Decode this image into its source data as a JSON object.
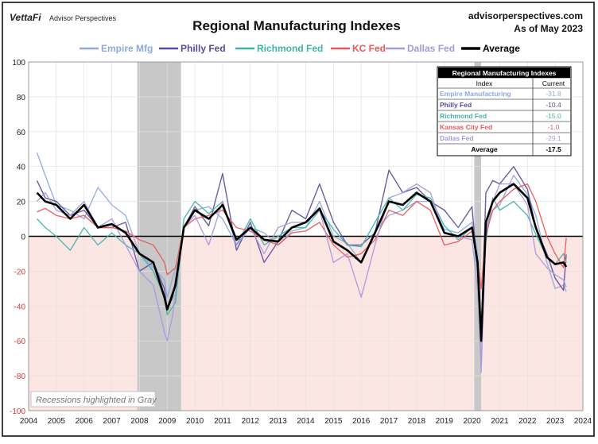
{
  "header": {
    "brand": "VettaFi",
    "brand_sub": "Advisor Perspectives",
    "site": "advisorperspectives.com",
    "as_of": "As of May 2023"
  },
  "chart_data": {
    "type": "line",
    "title": "Regional Manufacturing Indexes",
    "xlabel": "",
    "ylabel": "",
    "xlim": [
      2004,
      2024
    ],
    "ylim": [
      -100,
      100
    ],
    "x_ticks": [
      "2004",
      "2005",
      "2006",
      "2007",
      "2008",
      "2009",
      "2010",
      "2011",
      "2012",
      "2013",
      "2014",
      "2015",
      "2016",
      "2017",
      "2018",
      "2019",
      "2020",
      "2021",
      "2022",
      "2023",
      "2024"
    ],
    "y_ticks": [
      100,
      80,
      60,
      40,
      20,
      0,
      -20,
      -40,
      -60,
      -80,
      -100
    ],
    "recessions": [
      [
        2007.92,
        2009.5
      ],
      [
        2020.08,
        2020.33
      ]
    ],
    "annotation": "Recessions highlighted in Gray",
    "series": [
      {
        "name": "Empire Mfg",
        "color": "#8ea9db",
        "width": 1.4,
        "x": [
          2004.3,
          2004.6,
          2005.0,
          2005.5,
          2006.0,
          2006.5,
          2007.0,
          2007.5,
          2008.0,
          2008.5,
          2008.9,
          2009.0,
          2009.3,
          2009.6,
          2010.0,
          2010.5,
          2011.0,
          2011.5,
          2012.0,
          2012.5,
          2013.0,
          2013.5,
          2014.0,
          2014.5,
          2015.0,
          2015.5,
          2016.0,
          2016.5,
          2017.0,
          2017.5,
          2018.0,
          2018.5,
          2019.0,
          2019.5,
          2020.0,
          2020.2,
          2020.33,
          2020.5,
          2020.75,
          2021.0,
          2021.5,
          2022.0,
          2022.3,
          2022.7,
          2023.0,
          2023.3,
          2023.4
        ],
        "y": [
          48,
          35,
          18,
          15,
          10,
          28,
          18,
          12,
          -10,
          -18,
          -25,
          -35,
          -18,
          5,
          15,
          17,
          10,
          -5,
          5,
          2,
          -5,
          3,
          5,
          20,
          0,
          -4,
          -15,
          3,
          12,
          15,
          20,
          20,
          4,
          2,
          8,
          -10,
          -78,
          5,
          15,
          18,
          35,
          24,
          12,
          -15,
          -30,
          -28,
          -31.8
        ]
      },
      {
        "name": "Philly Fed",
        "color": "#5b4a9c",
        "width": 1.4,
        "x": [
          2004.3,
          2004.6,
          2005.0,
          2005.5,
          2006.0,
          2006.5,
          2007.0,
          2007.5,
          2008.0,
          2008.5,
          2008.9,
          2009.0,
          2009.2,
          2009.6,
          2010.0,
          2010.5,
          2011.0,
          2011.5,
          2012.0,
          2012.5,
          2013.0,
          2013.5,
          2014.0,
          2014.5,
          2015.0,
          2015.5,
          2016.0,
          2016.5,
          2017.0,
          2017.5,
          2018.0,
          2018.5,
          2019.0,
          2019.5,
          2020.0,
          2020.2,
          2020.33,
          2020.5,
          2020.75,
          2021.0,
          2021.5,
          2022.0,
          2022.3,
          2022.7,
          2023.0,
          2023.3,
          2023.4
        ],
        "y": [
          32,
          22,
          20,
          12,
          15,
          5,
          5,
          8,
          -20,
          -15,
          -30,
          -42,
          -35,
          5,
          17,
          6,
          36,
          -8,
          8,
          -15,
          -3,
          15,
          10,
          30,
          8,
          -5,
          -5,
          2,
          38,
          25,
          28,
          20,
          15,
          5,
          17,
          -20,
          -58,
          25,
          32,
          30,
          40,
          27,
          5,
          -10,
          -24,
          -31,
          -10.4
        ]
      },
      {
        "name": "Richmond Fed",
        "color": "#3fb5a8",
        "width": 1.4,
        "x": [
          2004.3,
          2004.6,
          2005.0,
          2005.5,
          2006.0,
          2006.5,
          2007.0,
          2007.5,
          2008.0,
          2008.5,
          2008.9,
          2009.0,
          2009.3,
          2009.6,
          2010.0,
          2010.5,
          2011.0,
          2011.5,
          2012.0,
          2012.5,
          2013.0,
          2013.5,
          2014.0,
          2014.5,
          2015.0,
          2015.5,
          2016.0,
          2016.5,
          2017.0,
          2017.5,
          2018.0,
          2018.5,
          2019.0,
          2019.5,
          2020.0,
          2020.2,
          2020.33,
          2020.5,
          2020.75,
          2021.0,
          2021.5,
          2022.0,
          2022.3,
          2022.7,
          2023.0,
          2023.3,
          2023.4
        ],
        "y": [
          10,
          5,
          0,
          -8,
          5,
          -5,
          2,
          -5,
          -10,
          -20,
          -35,
          -45,
          -38,
          10,
          20,
          13,
          20,
          -5,
          10,
          -5,
          0,
          5,
          5,
          15,
          4,
          -5,
          -6,
          8,
          22,
          15,
          24,
          22,
          6,
          -2,
          5,
          -20,
          -53,
          -3,
          22,
          15,
          20,
          12,
          1,
          -12,
          -16,
          -10,
          -15.0
        ]
      },
      {
        "name": "KC Fed",
        "color": "#e8585a",
        "width": 1.4,
        "x": [
          2004.3,
          2004.6,
          2005.0,
          2005.5,
          2006.0,
          2006.5,
          2007.0,
          2007.5,
          2008.0,
          2008.5,
          2008.9,
          2009.0,
          2009.3,
          2009.6,
          2010.0,
          2010.5,
          2011.0,
          2011.5,
          2012.0,
          2012.5,
          2013.0,
          2013.5,
          2014.0,
          2014.5,
          2015.0,
          2015.5,
          2016.0,
          2016.5,
          2017.0,
          2017.5,
          2018.0,
          2018.5,
          2019.0,
          2019.5,
          2020.0,
          2020.2,
          2020.33,
          2020.5,
          2020.75,
          2021.0,
          2021.5,
          2022.0,
          2022.3,
          2022.7,
          2023.0,
          2023.3,
          2023.4
        ],
        "y": [
          14,
          16,
          12,
          10,
          12,
          5,
          5,
          3,
          -2,
          -5,
          -15,
          -22,
          -18,
          5,
          10,
          12,
          15,
          5,
          3,
          -2,
          -5,
          2,
          3,
          8,
          -5,
          -12,
          -10,
          -2,
          15,
          12,
          20,
          15,
          -5,
          -3,
          3,
          -15,
          -30,
          1,
          15,
          20,
          27,
          30,
          20,
          0,
          -10,
          -18,
          -1.0
        ]
      },
      {
        "name": "Dallas Fed",
        "color": "#a998db",
        "width": 1.4,
        "x": [
          2004.3,
          2004.6,
          2005.0,
          2005.5,
          2006.0,
          2006.5,
          2007.0,
          2007.5,
          2008.0,
          2008.5,
          2008.9,
          2009.0,
          2009.2,
          2009.6,
          2010.0,
          2010.5,
          2011.0,
          2011.5,
          2012.0,
          2012.5,
          2013.0,
          2013.5,
          2014.0,
          2014.5,
          2015.0,
          2015.5,
          2016.0,
          2016.5,
          2017.0,
          2017.5,
          2018.0,
          2018.5,
          2019.0,
          2019.5,
          2020.0,
          2020.2,
          2020.33,
          2020.5,
          2020.75,
          2021.0,
          2021.5,
          2022.0,
          2022.3,
          2022.7,
          2023.0,
          2023.3,
          2023.4
        ],
        "y": [
          20,
          25,
          15,
          12,
          20,
          5,
          10,
          -5,
          -20,
          -28,
          -55,
          -60,
          -45,
          5,
          12,
          -5,
          20,
          -5,
          5,
          -10,
          5,
          8,
          8,
          15,
          -15,
          -10,
          -35,
          -5,
          22,
          25,
          30,
          25,
          2,
          0,
          -2,
          -30,
          -74,
          2,
          20,
          30,
          30,
          18,
          -10,
          -18,
          -22,
          -25,
          -29.1
        ]
      },
      {
        "name": "Average",
        "color": "#000000",
        "width": 2.6,
        "x": [
          2004.3,
          2004.6,
          2005.0,
          2005.5,
          2006.0,
          2006.5,
          2007.0,
          2007.5,
          2008.0,
          2008.5,
          2008.9,
          2009.0,
          2009.3,
          2009.6,
          2010.0,
          2010.5,
          2011.0,
          2011.5,
          2012.0,
          2012.5,
          2013.0,
          2013.5,
          2014.0,
          2014.5,
          2015.0,
          2015.5,
          2016.0,
          2016.5,
          2017.0,
          2017.5,
          2018.0,
          2018.5,
          2019.0,
          2019.5,
          2020.0,
          2020.2,
          2020.33,
          2020.5,
          2020.75,
          2021.0,
          2021.5,
          2022.0,
          2022.3,
          2022.7,
          2023.0,
          2023.3,
          2023.4
        ],
        "y": [
          25,
          20,
          18,
          10,
          18,
          5,
          7,
          2,
          -10,
          -15,
          -35,
          -42,
          -28,
          5,
          15,
          10,
          18,
          -2,
          5,
          -2,
          -3,
          5,
          8,
          16,
          -3,
          -8,
          -15,
          2,
          20,
          18,
          25,
          20,
          2,
          0,
          5,
          -15,
          -60,
          8,
          20,
          25,
          30,
          22,
          5,
          -12,
          -16,
          -15,
          -17.5
        ]
      }
    ],
    "table": {
      "title": "Regional Manufacturing Indexes",
      "headers": [
        "Index",
        "Current"
      ],
      "rows": [
        {
          "name": "Empire Manufacturing",
          "value": "-31.8",
          "color": "#8ea9db"
        },
        {
          "name": "Philly Fed",
          "value": "-10.4",
          "color": "#5b4a9c"
        },
        {
          "name": "Richmond Fed",
          "value": "-15.0",
          "color": "#3fb5a8"
        },
        {
          "name": "Kansas City Fed",
          "value": "-1.0",
          "color": "#e8585a"
        },
        {
          "name": "Dallas Fed",
          "value": "-29.1",
          "color": "#a998db"
        }
      ],
      "average": {
        "name": "Average",
        "value": "-17.5"
      }
    }
  }
}
